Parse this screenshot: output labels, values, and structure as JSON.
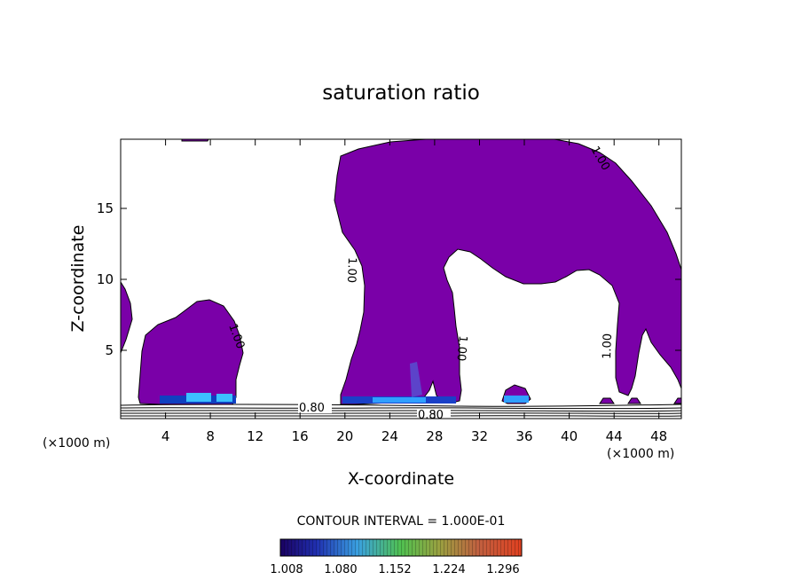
{
  "chart_data": {
    "type": "contour",
    "title": "saturation ratio",
    "xlabel": "X-coordinate",
    "ylabel": "Z-coordinate",
    "x_unit_label": "(×1000 m)",
    "xlim": [
      0,
      50
    ],
    "ylim": [
      0,
      20
    ],
    "x_ticks": [
      "4",
      "8",
      "12",
      "16",
      "20",
      "24",
      "28",
      "32",
      "36",
      "40",
      "44",
      "48"
    ],
    "y_ticks": [
      "5",
      "10",
      "15"
    ],
    "contour_interval_text": "CONTOUR INTERVAL = 1.000E-01",
    "contour_labels": [
      "0.80",
      "0.80",
      "1.00",
      "1.00",
      "1.00",
      "1.00",
      "1.00"
    ],
    "colorbar": {
      "ticks": [
        "1.008",
        "1.080",
        "1.152",
        "1.224",
        "1.296"
      ],
      "range": [
        1.008,
        1.33
      ]
    },
    "colors": {
      "fill": "#7a00a8",
      "cbar_low": "#1a0060",
      "cbar_mid": "#50c050",
      "cbar_high": "#e04020"
    }
  }
}
